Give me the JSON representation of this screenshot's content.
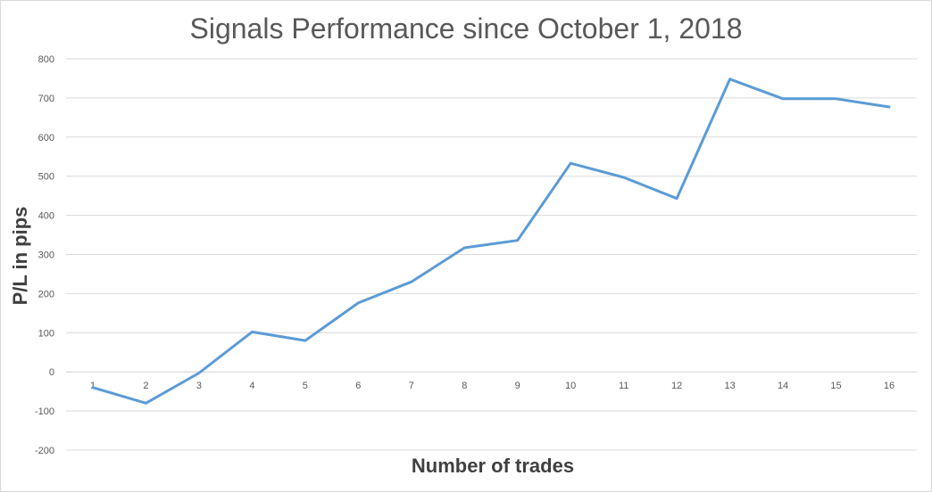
{
  "chart_data": {
    "type": "line",
    "title": "Signals Performance since October 1, 2018",
    "xlabel": "Number of trades",
    "ylabel": "P/L in pips",
    "ylim": [
      -200,
      800
    ],
    "yticks": [
      "800",
      "700",
      "600",
      "500",
      "400",
      "300",
      "200",
      "100",
      "0",
      "-100",
      "-200"
    ],
    "x": [
      "1",
      "2",
      "3",
      "4",
      "5",
      "6",
      "7",
      "8",
      "9",
      "10",
      "11",
      "12",
      "13",
      "14",
      "15",
      "16"
    ],
    "series": [
      {
        "values": [
          -40,
          -80,
          -3,
          102,
          80,
          176,
          230,
          317,
          336,
          533,
          497,
          443,
          748,
          698,
          698,
          677
        ]
      }
    ],
    "grid": true,
    "legend": "none",
    "line_color": "#5b9bd5"
  }
}
